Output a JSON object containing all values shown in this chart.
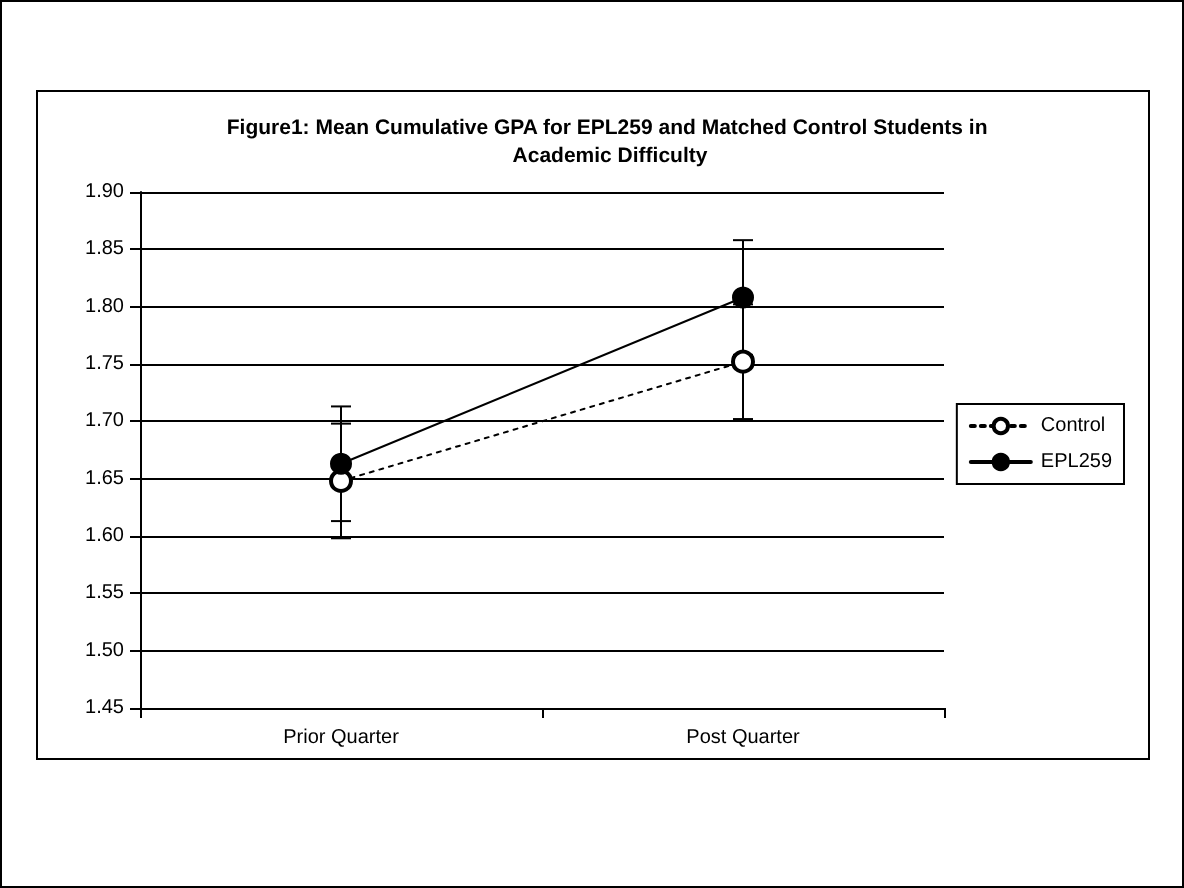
{
  "chart_data": {
    "type": "line",
    "title": "Figure1: Mean Cumulative GPA for EPL259 and Matched Control Students in Academic Difficulty",
    "categories": [
      "Prior Quarter",
      "Post Quarter"
    ],
    "series": [
      {
        "name": "Control",
        "color": "#000000",
        "values": [
          1.648,
          1.752
        ],
        "errors": [
          0.05,
          0.05
        ],
        "line_style": "dotted",
        "marker": "circle"
      },
      {
        "name": "EPL259",
        "color": "#000000",
        "values": [
          1.663,
          1.808
        ],
        "errors": [
          0.05,
          0.05
        ],
        "line_style": "solid",
        "marker": "circle"
      }
    ],
    "ylim": [
      1.45,
      1.9
    ],
    "yticks": [
      1.45,
      {
        "value": 1.5,
        "label": "1.50"
      },
      1.55,
      {
        "value": 1.6,
        "label": "1.60"
      },
      1.65,
      {
        "value": 1.7,
        "label": "1.70"
      },
      1.75,
      {
        "value": 1.8,
        "label": "1.80"
      },
      1.85,
      {
        "value": 1.9,
        "label": "1.90"
      }
    ],
    "grid": "y",
    "legend": "right"
  }
}
